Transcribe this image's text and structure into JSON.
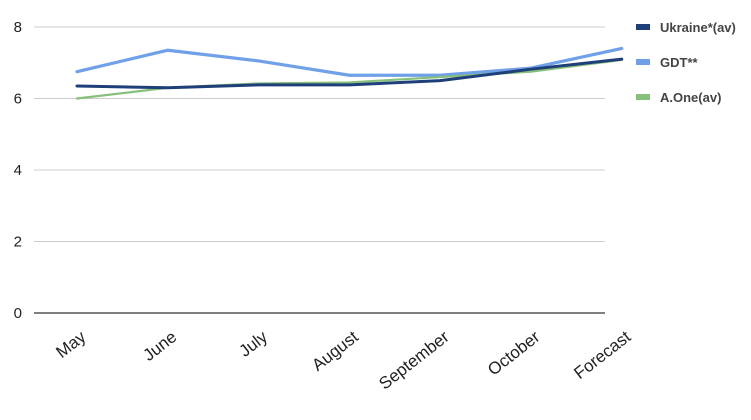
{
  "chart_data": {
    "type": "line",
    "categories": [
      "May",
      "June",
      "July",
      "August",
      "September",
      "October",
      "Forecast"
    ],
    "ylim": [
      0,
      8
    ],
    "yticks": [
      0,
      2,
      4,
      6,
      8
    ],
    "grid": true,
    "legend_position": "right",
    "series": [
      {
        "name": "Ukraine*(av)",
        "color": "#1f3f7a",
        "values": [
          6.35,
          6.3,
          6.38,
          6.38,
          6.5,
          6.82,
          7.1
        ]
      },
      {
        "name": "GDT**",
        "color": "#6fa0e8",
        "values": [
          6.75,
          7.35,
          7.05,
          6.65,
          6.65,
          6.85,
          7.4
        ]
      },
      {
        "name": "A.One(av)",
        "color": "#86c07a",
        "values": [
          6.0,
          6.3,
          6.42,
          6.45,
          6.6,
          6.75,
          7.08
        ]
      }
    ]
  }
}
